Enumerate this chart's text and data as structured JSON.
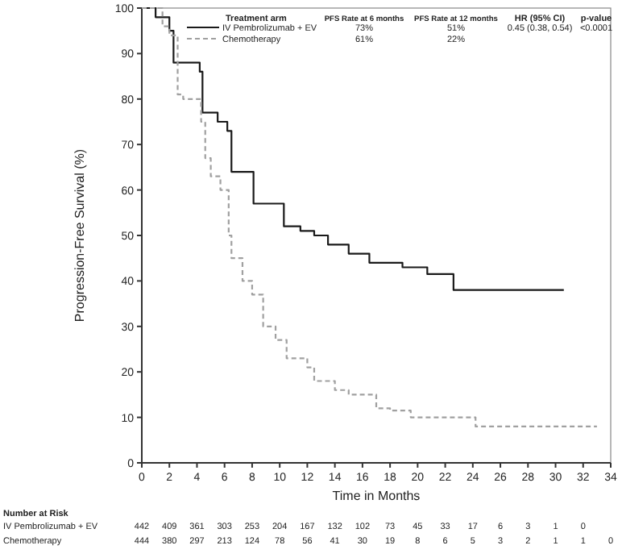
{
  "chart_data": {
    "type": "step",
    "xlabel": "Time in Months",
    "ylabel": "Progression-Free Survival (%)",
    "xlim": [
      0,
      34
    ],
    "xticks": [
      0,
      2,
      4,
      6,
      8,
      10,
      12,
      14,
      16,
      18,
      20,
      22,
      24,
      26,
      28,
      30,
      32,
      34
    ],
    "ylim": [
      0,
      100
    ],
    "yticks": [
      0,
      10,
      20,
      30,
      40,
      50,
      60,
      70,
      80,
      90,
      100
    ],
    "grid": false,
    "marker": "none",
    "legend": "top",
    "series": [
      {
        "name": "IV Pembrolizumab + EV",
        "color": "#1a1a1a",
        "line_style": "solid",
        "x": [
          0,
          1,
          2,
          2.3,
          4.2,
          4.4,
          5.5,
          6.2,
          6.5,
          8.1,
          10.3,
          11.5,
          12.5,
          13.5,
          15,
          16.5,
          18.9,
          20.7,
          22.6,
          30.6
        ],
        "values": [
          100,
          98,
          95,
          88,
          86,
          77,
          75,
          73,
          64,
          57,
          52,
          51,
          50,
          48,
          46,
          44,
          43,
          41.5,
          38,
          38
        ]
      },
      {
        "name": "Chemotherapy",
        "color": "#a0a0a0",
        "line_style": "dashed",
        "x": [
          0,
          1.5,
          2,
          2.6,
          3,
          4.3,
          4.6,
          5,
          5.7,
          6.3,
          6.5,
          7.3,
          8,
          8.8,
          9.7,
          10.5,
          12,
          12.5,
          14,
          15,
          17,
          18,
          19.5,
          24.2,
          33
        ],
        "values": [
          100,
          96,
          94,
          81,
          80,
          75,
          67,
          63,
          60,
          50,
          45,
          40,
          37,
          30,
          27,
          23,
          21,
          18,
          16,
          15,
          12,
          11.5,
          10,
          8,
          8
        ]
      }
    ],
    "annotations": [
      "Treatment arm",
      "PFS Rate at 6 months",
      "PFS Rate at 12 months",
      "HR (95% CI)",
      "p-value",
      "73%",
      "51%",
      "0.45 (0.38, 0.54)",
      "<0.0001",
      "61%",
      "22%",
      "Number at Risk",
      "442 409 361 303 253 204 167 132 102 73 45 33 17 6 3 1 0",
      "444 380 297 213 124 78 56 41 30 19 8 6 5 3 2 1 1 0"
    ]
  }
}
